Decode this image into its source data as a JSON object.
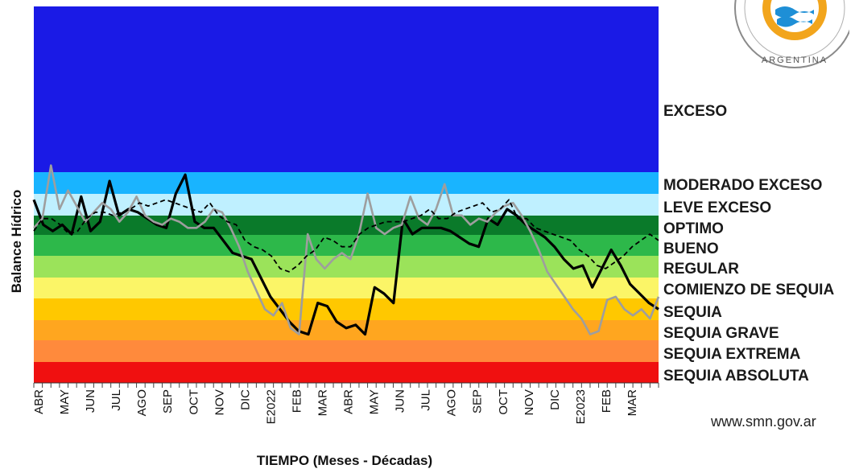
{
  "chart_data": {
    "type": "line",
    "ylabel": "Balance Hídrico",
    "xlabel": "TIEMPO (Meses - Décadas)",
    "bands": [
      {
        "label": "EXCESO",
        "color": "#1a1ae6"
      },
      {
        "label": "MODERADO EXCESO",
        "color": "#19b4ff"
      },
      {
        "label": "LEVE EXCESO",
        "color": "#bff0ff"
      },
      {
        "label": "OPTIMO",
        "color": "#0a7a2a"
      },
      {
        "label": "BUENO",
        "color": "#2db84a"
      },
      {
        "label": "REGULAR",
        "color": "#9be35a"
      },
      {
        "label": "COMIENZO DE SEQUIA",
        "color": "#fbf567"
      },
      {
        "label": "SEQUIA",
        "color": "#ffc800"
      },
      {
        "label": "SEQUIA GRAVE",
        "color": "#ffa61f"
      },
      {
        "label": "SEQUIA EXTREMA",
        "color": "#ff8a3c"
      },
      {
        "label": "SEQUIA ABSOLUTA",
        "color": "#f01010"
      }
    ],
    "x_labels": [
      "ABR",
      "MAY",
      "JUN",
      "JUL",
      "AGO",
      "SEP",
      "OCT",
      "NOV",
      "DIC",
      "E2022",
      "FEB",
      "MAR",
      "ABR",
      "MAY",
      "JUN",
      "JUL",
      "AGO",
      "SEP",
      "OCT",
      "NOV",
      "DIC",
      "E2023",
      "FEB",
      "MAR"
    ],
    "series": [
      {
        "style": "solid-black",
        "color": "#000000",
        "values": [
          3.9,
          3.1,
          2.9,
          3.1,
          2.8,
          4.0,
          2.9,
          3.2,
          4.5,
          3.4,
          3.6,
          3.5,
          3.3,
          3.1,
          3.0,
          4.1,
          4.7,
          3.2,
          3.0,
          3.0,
          2.6,
          2.2,
          2.1,
          2.0,
          1.4,
          0.8,
          0.4,
          0.0,
          -0.3,
          -0.4,
          0.6,
          0.5,
          0.0,
          -0.2,
          -0.1,
          -0.4,
          1.1,
          0.9,
          0.6,
          3.3,
          2.8,
          3.0,
          3.0,
          3.0,
          2.9,
          2.7,
          2.5,
          2.4,
          3.3,
          3.1,
          3.6,
          3.4,
          3.1,
          2.9,
          2.7,
          2.4,
          2.0,
          1.7,
          1.8,
          1.1,
          1.7,
          2.3,
          1.8,
          1.2,
          0.9,
          0.6,
          0.4
        ]
      },
      {
        "style": "solid-gray",
        "color": "#9e9e9e",
        "values": [
          3.0,
          3.3,
          5.0,
          3.6,
          4.2,
          3.7,
          3.2,
          3.5,
          3.8,
          3.6,
          3.2,
          3.5,
          4.0,
          3.4,
          3.2,
          3.1,
          3.3,
          3.2,
          3.0,
          3.0,
          3.2,
          3.6,
          3.5,
          3.0,
          2.4,
          1.6,
          1.0,
          0.4,
          0.2,
          0.6,
          -0.2,
          -0.4,
          2.8,
          2.0,
          1.7,
          2.0,
          2.2,
          2.0,
          2.8,
          4.1,
          3.0,
          2.8,
          3.0,
          3.1,
          4.0,
          3.3,
          3.1,
          3.6,
          4.4,
          3.4,
          3.4,
          3.1,
          3.3,
          3.2,
          3.5,
          3.7,
          3.8,
          3.4,
          2.9,
          2.3,
          1.6,
          1.2,
          0.8,
          0.4,
          0.1,
          -0.4,
          -0.3,
          0.7,
          0.8,
          0.4,
          0.2,
          0.4,
          0.1,
          0.8
        ]
      },
      {
        "style": "dashed-black",
        "color": "#000000",
        "values": [
          2.9,
          3.3,
          3.3,
          3.1,
          2.8,
          2.9,
          3.3,
          3.5,
          3.5,
          3.4,
          3.5,
          3.6,
          3.8,
          3.7,
          3.8,
          3.9,
          3.8,
          3.7,
          3.6,
          3.5,
          3.8,
          3.4,
          3.2,
          3.1,
          2.6,
          2.4,
          2.3,
          2.1,
          1.7,
          1.6,
          1.8,
          2.1,
          2.3,
          2.7,
          2.6,
          2.4,
          2.4,
          2.8,
          3.0,
          3.1,
          3.2,
          3.2,
          3.2,
          3.3,
          3.4,
          3.6,
          3.3,
          3.3,
          3.5,
          3.6,
          3.7,
          3.8,
          3.5,
          3.6,
          3.9,
          3.3,
          3.3,
          3.0,
          2.9,
          2.8,
          2.7,
          2.6,
          2.3,
          2.1,
          1.8,
          1.7,
          1.9,
          2.1,
          2.4,
          2.6,
          2.8,
          2.6
        ]
      }
    ]
  },
  "website": "www.smn.gov.ar",
  "logo_text": "ARGENTINA"
}
